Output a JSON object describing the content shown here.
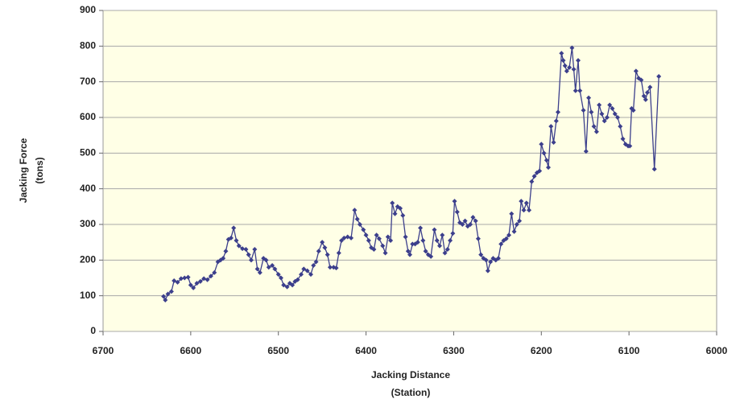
{
  "chart_data": {
    "type": "line",
    "xlabel": [
      "Jacking Distance",
      "(Station)"
    ],
    "ylabel": [
      "Jacking Force",
      "(tons)"
    ],
    "xlim": [
      6700,
      6000
    ],
    "xticks": [
      6700,
      6600,
      6500,
      6400,
      6300,
      6200,
      6100,
      6000
    ],
    "ylim": [
      0,
      900
    ],
    "yticks": [
      0,
      100,
      200,
      300,
      400,
      500,
      600,
      700,
      800,
      900
    ],
    "grid": true,
    "background": "#ffffe6",
    "series": [
      {
        "color": "#3c3f8c",
        "x": [
          6631,
          6629,
          6626,
          6622,
          6619,
          6615,
          6611,
          6607,
          6603,
          6600,
          6597,
          6593,
          6589,
          6585,
          6581,
          6577,
          6573,
          6569,
          6566,
          6563,
          6560,
          6557,
          6554,
          6551,
          6548,
          6545,
          6541,
          6537,
          6534,
          6531,
          6527,
          6524,
          6521,
          6517,
          6514,
          6511,
          6507,
          6504,
          6500,
          6497,
          6494,
          6490,
          6487,
          6484,
          6481,
          6478,
          6474,
          6471,
          6467,
          6463,
          6460,
          6457,
          6454,
          6450,
          6447,
          6444,
          6441,
          6437,
          6434,
          6431,
          6428,
          6425,
          6421,
          6417,
          6413,
          6410,
          6407,
          6403,
          6400,
          6397,
          6394,
          6391,
          6388,
          6385,
          6381,
          6378,
          6375,
          6372,
          6370,
          6367,
          6364,
          6361,
          6358,
          6355,
          6352,
          6350,
          6347,
          6344,
          6341,
          6338,
          6335,
          6332,
          6329,
          6326,
          6322,
          6319,
          6316,
          6313,
          6310,
          6307,
          6304,
          6301,
          6299,
          6296,
          6293,
          6290,
          6287,
          6284,
          6281,
          6278,
          6275,
          6272,
          6269,
          6266,
          6263,
          6261,
          6258,
          6255,
          6252,
          6249,
          6246,
          6243,
          6240,
          6237,
          6234,
          6231,
          6228,
          6225,
          6223,
          6220,
          6217,
          6214,
          6211,
          6208,
          6205,
          6202,
          6200,
          6197,
          6194,
          6192,
          6189,
          6186,
          6183,
          6181,
          6177,
          6175,
          6173,
          6171,
          6168,
          6165,
          6163,
          6161,
          6158,
          6156,
          6152,
          6149,
          6146,
          6143,
          6140,
          6137,
          6134,
          6131,
          6128,
          6125,
          6122,
          6119,
          6116,
          6113,
          6110,
          6107,
          6104,
          6101,
          6099,
          6097,
          6095,
          6092,
          6089,
          6086,
          6083,
          6081,
          6079,
          6076,
          6071,
          6066
        ],
        "values": [
          98,
          88,
          105,
          112,
          142,
          138,
          148,
          150,
          152,
          130,
          122,
          135,
          140,
          148,
          145,
          155,
          165,
          195,
          200,
          205,
          225,
          258,
          262,
          290,
          255,
          240,
          232,
          230,
          215,
          200,
          230,
          175,
          165,
          205,
          200,
          180,
          185,
          175,
          160,
          150,
          130,
          125,
          135,
          130,
          140,
          145,
          160,
          175,
          170,
          160,
          185,
          195,
          225,
          250,
          235,
          215,
          180,
          180,
          178,
          220,
          255,
          262,
          265,
          262,
          340,
          315,
          300,
          285,
          270,
          255,
          235,
          230,
          270,
          260,
          240,
          220,
          265,
          255,
          360,
          330,
          350,
          345,
          325,
          265,
          225,
          215,
          245,
          245,
          250,
          290,
          255,
          225,
          215,
          210,
          285,
          255,
          240,
          270,
          220,
          230,
          255,
          275,
          365,
          335,
          305,
          300,
          310,
          295,
          300,
          320,
          310,
          260,
          215,
          205,
          200,
          170,
          195,
          205,
          200,
          205,
          245,
          255,
          260,
          270,
          330,
          280,
          300,
          310,
          365,
          340,
          360,
          340,
          420,
          435,
          445,
          450,
          525,
          500,
          480,
          460,
          575,
          530,
          590,
          615,
          780,
          760,
          745,
          730,
          740,
          795,
          735,
          675,
          760,
          675,
          620,
          505,
          655,
          615,
          575,
          560,
          635,
          610,
          590,
          600,
          635,
          625,
          610,
          600,
          575,
          540,
          525,
          520,
          520,
          625,
          620,
          730,
          710,
          705,
          660,
          650,
          670,
          685,
          455,
          715
        ]
      }
    ]
  }
}
